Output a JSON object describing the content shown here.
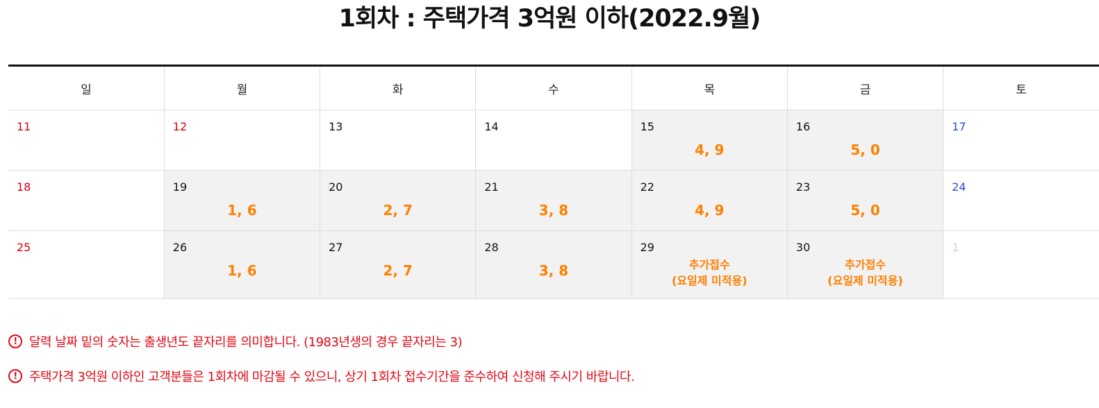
{
  "title": "1회차 : 주택가격 3억원 이하(2022.9월)",
  "weekdays": [
    "일",
    "월",
    "화",
    "수",
    "목",
    "금",
    "토"
  ],
  "rows": [
    [
      {
        "day": "11",
        "digits": ""
      },
      {
        "day": "12",
        "digits": ""
      },
      {
        "day": "13",
        "digits": ""
      },
      {
        "day": "14",
        "digits": ""
      },
      {
        "day": "15",
        "digits": "4, 9"
      },
      {
        "day": "16",
        "digits": "5, 0"
      },
      {
        "day": "17",
        "digits": ""
      }
    ],
    [
      {
        "day": "18",
        "digits": ""
      },
      {
        "day": "19",
        "digits": "1, 6"
      },
      {
        "day": "20",
        "digits": "2, 7"
      },
      {
        "day": "21",
        "digits": "3, 8"
      },
      {
        "day": "22",
        "digits": "4, 9"
      },
      {
        "day": "23",
        "digits": "5, 0"
      },
      {
        "day": "24",
        "digits": ""
      }
    ],
    [
      {
        "day": "25",
        "digits": ""
      },
      {
        "day": "26",
        "digits": "1, 6"
      },
      {
        "day": "27",
        "digits": "2, 7"
      },
      {
        "day": "28",
        "digits": "3, 8"
      },
      {
        "day": "29",
        "extra_line1": "추가접수",
        "extra_line2": "(요일제 미적용)"
      },
      {
        "day": "30",
        "extra_line1": "추가접수",
        "extra_line2": "(요일제 미적용)"
      },
      {
        "day": "1",
        "digits": ""
      }
    ]
  ],
  "notes": [
    {
      "icon": "!",
      "text": "달력 날짜 밑의 숫자는 출생년도 끝자리를 의미합니다. (1983년생의 경우 끝자리는 3)"
    },
    {
      "icon": "!",
      "text": "주택가격 3억원 이하인 고객분들은 1회차에 마감될 수 있으니, 상기 1회차 접수기간을 준수하여 신청해 주시기 바랍니다."
    }
  ],
  "colors": {
    "sunday": "#d8000c",
    "saturday": "#2a4fd6",
    "highlight": "#ff7f00",
    "notice": "#e30613",
    "shaded_cell": "#f2f2f2"
  }
}
